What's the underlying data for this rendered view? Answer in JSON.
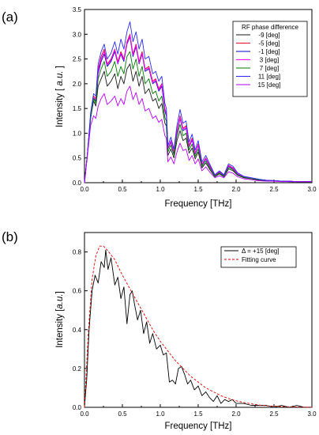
{
  "chart_data": [
    {
      "panel_label": "(a)",
      "type": "line",
      "xlabel": "Frequency [THz]",
      "ylabel": {
        "prefix": "Intensity [ ",
        "italic": "a.u.",
        "suffix": " ]"
      },
      "xlim": [
        0,
        3
      ],
      "ylim": [
        0,
        3.5
      ],
      "xticks": [
        "0.0",
        "0.5",
        "1.0",
        "1.5",
        "2.0",
        "2.5",
        "3.0"
      ],
      "yticks": [
        "0.0",
        "0.5",
        "1.0",
        "1.5",
        "2.0",
        "2.5",
        "3.0",
        "3.5"
      ],
      "legend": {
        "title": "RF phase difference",
        "placement": "top-right"
      },
      "x": [
        0,
        0.04,
        0.08,
        0.12,
        0.15,
        0.18,
        0.22,
        0.26,
        0.3,
        0.35,
        0.4,
        0.44,
        0.48,
        0.52,
        0.56,
        0.6,
        0.64,
        0.68,
        0.72,
        0.76,
        0.8,
        0.85,
        0.9,
        0.94,
        0.98,
        1.02,
        1.06,
        1.08,
        1.1,
        1.14,
        1.18,
        1.22,
        1.26,
        1.3,
        1.34,
        1.38,
        1.42,
        1.46,
        1.5,
        1.55,
        1.6,
        1.66,
        1.72,
        1.78,
        1.84,
        1.9,
        1.96,
        2.02,
        2.1,
        2.2,
        2.3,
        2.4,
        2.5,
        2.6,
        2.7,
        2.8,
        2.9,
        3.0
      ],
      "series": [
        {
          "name": "-9 [deg]",
          "color": "#1a1a1a",
          "values": [
            0,
            0.6,
            1.3,
            1.65,
            1.55,
            1.95,
            2.1,
            2.25,
            1.95,
            2.05,
            2.2,
            1.9,
            2.15,
            2.0,
            2.3,
            2.4,
            2.05,
            2.25,
            1.95,
            2.15,
            1.8,
            1.9,
            1.65,
            1.7,
            1.5,
            1.6,
            1.2,
            1.15,
            0.55,
            0.68,
            0.5,
            0.85,
            1.05,
            0.85,
            0.9,
            0.6,
            0.7,
            0.48,
            0.62,
            0.3,
            0.4,
            0.25,
            0.12,
            0.18,
            0.12,
            0.28,
            0.24,
            0.15,
            0.1,
            0.08,
            0.05,
            0.04,
            0.03,
            0.03,
            0.02,
            0.02,
            0.02,
            0.02
          ]
        },
        {
          "name": "-5 [deg]",
          "color": "#e0002a",
          "values": [
            0,
            0.6,
            1.35,
            1.75,
            1.7,
            2.3,
            2.55,
            2.7,
            2.4,
            2.5,
            2.7,
            2.45,
            2.65,
            2.5,
            2.85,
            3.0,
            2.6,
            2.8,
            2.45,
            2.65,
            2.3,
            2.35,
            2.05,
            2.1,
            1.9,
            2.0,
            1.5,
            1.4,
            0.7,
            0.85,
            0.62,
            1.05,
            1.35,
            1.1,
            1.15,
            0.75,
            0.9,
            0.6,
            0.78,
            0.38,
            0.5,
            0.32,
            0.15,
            0.22,
            0.15,
            0.35,
            0.3,
            0.18,
            0.12,
            0.09,
            0.06,
            0.05,
            0.04,
            0.03,
            0.03,
            0.02,
            0.02,
            0.02
          ]
        },
        {
          "name": "-1 [deg]",
          "color": "#0000c8",
          "values": [
            0,
            0.6,
            1.3,
            1.7,
            1.65,
            2.2,
            2.45,
            2.6,
            2.35,
            2.45,
            2.65,
            2.4,
            2.6,
            2.45,
            2.8,
            2.95,
            2.55,
            2.75,
            2.4,
            2.6,
            2.25,
            2.3,
            2.0,
            2.05,
            1.85,
            1.95,
            1.45,
            1.35,
            0.68,
            0.82,
            0.6,
            1.0,
            1.3,
            1.05,
            1.1,
            0.72,
            0.86,
            0.58,
            0.75,
            0.36,
            0.48,
            0.3,
            0.14,
            0.21,
            0.14,
            0.33,
            0.28,
            0.17,
            0.11,
            0.09,
            0.06,
            0.05,
            0.04,
            0.03,
            0.03,
            0.02,
            0.02,
            0.02
          ]
        },
        {
          "name": "3 [deg]",
          "color": "#ff00ff",
          "values": [
            0,
            0.6,
            1.3,
            1.72,
            1.68,
            2.25,
            2.5,
            2.65,
            2.38,
            2.48,
            2.68,
            2.42,
            2.62,
            2.48,
            2.82,
            2.97,
            2.58,
            2.78,
            2.42,
            2.62,
            2.28,
            2.32,
            2.02,
            2.08,
            1.88,
            1.98,
            1.48,
            1.38,
            0.69,
            0.84,
            0.61,
            1.02,
            1.32,
            1.08,
            1.12,
            0.73,
            0.88,
            0.59,
            0.76,
            0.37,
            0.49,
            0.31,
            0.15,
            0.22,
            0.15,
            0.34,
            0.29,
            0.18,
            0.12,
            0.09,
            0.06,
            0.05,
            0.04,
            0.03,
            0.03,
            0.02,
            0.02,
            0.02
          ]
        },
        {
          "name": "7 [deg]",
          "color": "#007800",
          "values": [
            0,
            0.6,
            1.3,
            1.7,
            1.6,
            2.1,
            2.3,
            2.45,
            2.15,
            2.25,
            2.45,
            2.15,
            2.35,
            2.2,
            2.55,
            2.65,
            2.3,
            2.5,
            2.15,
            2.35,
            2.0,
            2.1,
            1.8,
            1.85,
            1.65,
            1.75,
            1.32,
            1.25,
            0.62,
            0.76,
            0.56,
            0.95,
            1.18,
            0.95,
            1.0,
            0.66,
            0.78,
            0.53,
            0.68,
            0.33,
            0.44,
            0.28,
            0.13,
            0.2,
            0.13,
            0.31,
            0.26,
            0.16,
            0.11,
            0.08,
            0.06,
            0.04,
            0.03,
            0.03,
            0.02,
            0.02,
            0.02,
            0.02
          ]
        },
        {
          "name": "11 [deg]",
          "color": "#2828ff",
          "values": [
            0,
            0.6,
            1.4,
            1.8,
            1.75,
            2.4,
            2.65,
            2.8,
            2.5,
            2.62,
            2.85,
            2.6,
            2.9,
            2.7,
            3.05,
            3.25,
            2.85,
            3.05,
            2.7,
            2.9,
            2.5,
            2.55,
            2.2,
            2.25,
            2.05,
            2.15,
            1.6,
            1.5,
            0.75,
            0.92,
            0.68,
            1.15,
            1.48,
            1.2,
            1.25,
            0.82,
            0.98,
            0.66,
            0.85,
            0.42,
            0.55,
            0.35,
            0.16,
            0.24,
            0.16,
            0.38,
            0.33,
            0.2,
            0.13,
            0.1,
            0.07,
            0.05,
            0.04,
            0.03,
            0.03,
            0.02,
            0.02,
            0.02
          ]
        },
        {
          "name": "15 [deg]",
          "color": "#b400ff",
          "values": [
            0,
            0.55,
            1.15,
            1.35,
            1.3,
            1.55,
            1.7,
            1.8,
            1.58,
            1.65,
            1.75,
            1.55,
            1.7,
            1.58,
            1.85,
            1.95,
            1.68,
            1.82,
            1.58,
            1.7,
            1.45,
            1.5,
            1.3,
            1.35,
            1.22,
            1.28,
            0.95,
            0.9,
            0.42,
            0.52,
            0.38,
            0.62,
            0.8,
            0.65,
            0.68,
            0.45,
            0.55,
            0.38,
            0.48,
            0.24,
            0.32,
            0.2,
            0.1,
            0.14,
            0.1,
            0.22,
            0.19,
            0.12,
            0.08,
            0.06,
            0.04,
            0.03,
            0.03,
            0.02,
            0.02,
            0.02,
            0.02,
            0.02
          ]
        }
      ]
    },
    {
      "panel_label": "(b)",
      "type": "line",
      "xlabel": "Frequency [THz]",
      "ylabel": {
        "prefix": "Intensity [",
        "italic": "a.u.",
        "suffix": "]"
      },
      "xlim": [
        0,
        3
      ],
      "ylim": [
        0,
        0.9
      ],
      "xticks": [
        "0.0",
        "0.5",
        "1.0",
        "1.5",
        "2.0",
        "2.5",
        "3.0"
      ],
      "yticks": [
        "0.0",
        "0.2",
        "0.4",
        "0.6",
        "0.8"
      ],
      "legend": {
        "placement": "top-right"
      },
      "series": [
        {
          "name": "Δ = +15 [deg]",
          "color": "#000000",
          "style": "solid",
          "x": [
            0,
            0.03,
            0.06,
            0.1,
            0.14,
            0.18,
            0.22,
            0.26,
            0.28,
            0.31,
            0.35,
            0.4,
            0.44,
            0.48,
            0.52,
            0.56,
            0.6,
            0.63,
            0.66,
            0.7,
            0.74,
            0.78,
            0.82,
            0.86,
            0.9,
            0.95,
            1.0,
            1.04,
            1.08,
            1.12,
            1.16,
            1.2,
            1.24,
            1.28,
            1.32,
            1.36,
            1.4,
            1.45,
            1.5,
            1.55,
            1.6,
            1.65,
            1.7,
            1.75,
            1.8,
            1.85,
            1.9,
            1.95,
            2.0,
            2.1,
            2.2,
            2.3,
            2.4,
            2.5,
            2.6,
            2.7,
            2.8,
            2.9,
            3.0
          ],
          "values": [
            0,
            0.15,
            0.4,
            0.6,
            0.68,
            0.64,
            0.75,
            0.72,
            0.81,
            0.71,
            0.77,
            0.63,
            0.67,
            0.56,
            0.62,
            0.43,
            0.58,
            0.6,
            0.53,
            0.45,
            0.5,
            0.38,
            0.44,
            0.33,
            0.38,
            0.3,
            0.32,
            0.27,
            0.28,
            0.13,
            0.14,
            0.12,
            0.2,
            0.21,
            0.17,
            0.12,
            0.14,
            0.09,
            0.11,
            0.06,
            0.08,
            0.05,
            0.03,
            0.06,
            0.02,
            0.04,
            0.03,
            0.04,
            0.02,
            0.02,
            0.01,
            0.01,
            0.01,
            0.0,
            0.01,
            0.0,
            0.01,
            0.0,
            0.0
          ]
        },
        {
          "name": "Fitting curve",
          "color": "#e00000",
          "style": "dashed",
          "x": [
            0,
            0.05,
            0.1,
            0.15,
            0.2,
            0.25,
            0.3,
            0.4,
            0.5,
            0.6,
            0.7,
            0.8,
            0.9,
            1.0,
            1.1,
            1.2,
            1.3,
            1.4,
            1.5,
            1.6,
            1.7,
            1.8,
            1.9,
            2.0,
            2.1,
            2.2,
            2.3,
            2.4,
            2.5,
            2.6,
            2.7,
            2.8,
            2.9,
            3.0
          ],
          "values": [
            0,
            0.38,
            0.66,
            0.78,
            0.83,
            0.83,
            0.81,
            0.76,
            0.68,
            0.61,
            0.54,
            0.47,
            0.4,
            0.34,
            0.29,
            0.24,
            0.2,
            0.16,
            0.13,
            0.1,
            0.08,
            0.06,
            0.045,
            0.034,
            0.025,
            0.018,
            0.012,
            0.008,
            0.006,
            0.004,
            0.003,
            0.002,
            0.001,
            0.001
          ]
        }
      ]
    }
  ]
}
